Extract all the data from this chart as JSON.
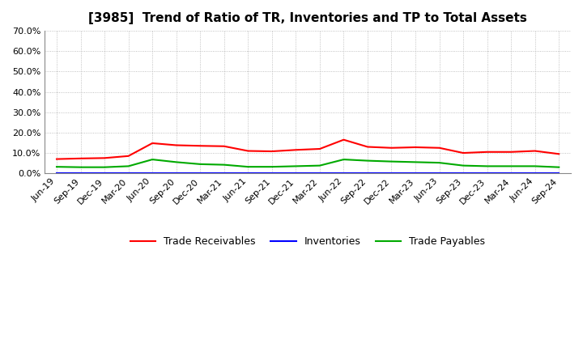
{
  "title": "[3985]  Trend of Ratio of TR, Inventories and TP to Total Assets",
  "x_labels": [
    "Jun-19",
    "Sep-19",
    "Dec-19",
    "Mar-20",
    "Jun-20",
    "Sep-20",
    "Dec-20",
    "Mar-21",
    "Jun-21",
    "Sep-21",
    "Dec-21",
    "Mar-22",
    "Jun-22",
    "Sep-22",
    "Dec-22",
    "Mar-23",
    "Jun-23",
    "Sep-23",
    "Dec-23",
    "Mar-24",
    "Jun-24",
    "Sep-24"
  ],
  "trade_receivables": [
    7.0,
    7.3,
    7.5,
    8.5,
    14.8,
    13.8,
    13.5,
    13.3,
    11.0,
    10.8,
    11.5,
    12.0,
    16.5,
    13.0,
    12.5,
    12.8,
    12.5,
    10.0,
    10.5,
    10.5,
    11.0,
    9.5
  ],
  "inventories": [
    0.1,
    0.1,
    0.1,
    0.1,
    0.1,
    0.1,
    0.1,
    0.1,
    0.1,
    0.1,
    0.1,
    0.1,
    0.1,
    0.1,
    0.1,
    0.1,
    0.1,
    0.1,
    0.1,
    0.1,
    0.1,
    0.1
  ],
  "trade_payables": [
    3.2,
    3.0,
    3.0,
    3.5,
    6.8,
    5.5,
    4.5,
    4.2,
    3.2,
    3.2,
    3.5,
    3.8,
    6.8,
    6.2,
    5.8,
    5.5,
    5.2,
    3.8,
    3.5,
    3.5,
    3.5,
    3.0
  ],
  "tr_color": "#ff0000",
  "inv_color": "#0000ff",
  "tp_color": "#00aa00",
  "ylim": [
    0,
    70
  ],
  "yticks": [
    0,
    10,
    20,
    30,
    40,
    50,
    60,
    70
  ],
  "bg_color": "#ffffff",
  "grid_color": "#b0b0b0",
  "line_width": 1.5,
  "legend_labels": [
    "Trade Receivables",
    "Inventories",
    "Trade Payables"
  ],
  "title_fontsize": 11,
  "tick_fontsize": 8,
  "legend_fontsize": 9
}
